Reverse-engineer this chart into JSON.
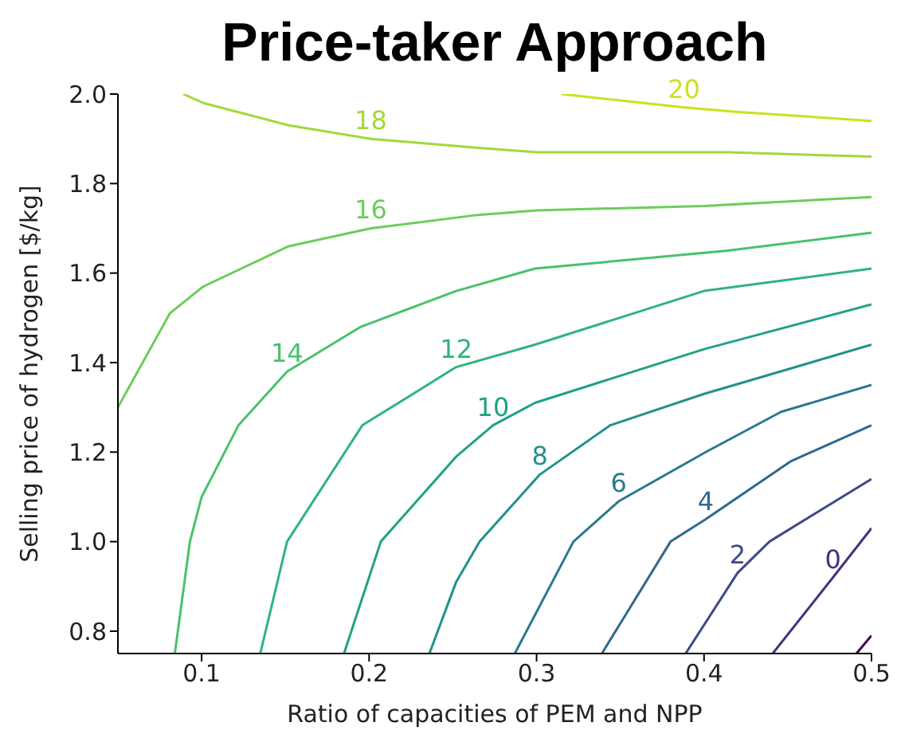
{
  "chart_data": {
    "type": "line",
    "title": "Price-taker Approach",
    "xlabel": "Ratio of capacities of PEM and NPP",
    "ylabel": "Selling price of hydrogen [$/kg]",
    "xlim": [
      0.05,
      0.5
    ],
    "xticks": [
      0.1,
      0.2,
      0.3,
      0.4,
      0.5
    ],
    "ylim": [
      0.75,
      2.0
    ],
    "yticks": [
      0.8,
      {
        "value": 1.0,
        "label": "1.0"
      },
      1.2,
      1.4,
      1.6,
      1.8,
      {
        "value": 2.0,
        "label": "2.0"
      }
    ],
    "series": [
      {
        "color": "#440154",
        "x": [
          0.491,
          0.5
        ],
        "values": [
          0.75,
          0.79
        ]
      },
      {
        "name": "0",
        "color": "#46327e",
        "x": [
          0.441,
          0.477,
          0.5
        ],
        "values": [
          0.75,
          0.92,
          1.03
        ]
      },
      {
        "name": "2",
        "color": "#3e4989",
        "x": [
          0.389,
          0.42,
          0.439,
          0.5
        ],
        "values": [
          0.75,
          0.93,
          1.0,
          1.14
        ]
      },
      {
        "name": "4",
        "color": "#31688e",
        "x": [
          0.339,
          0.38,
          0.401,
          0.452,
          0.5
        ],
        "values": [
          0.75,
          1.0,
          1.05,
          1.18,
          1.26
        ]
      },
      {
        "name": "6",
        "color": "#2a788e",
        "x": [
          0.287,
          0.322,
          0.349,
          0.401,
          0.446,
          0.5
        ],
        "values": [
          0.75,
          1.0,
          1.09,
          1.2,
          1.29,
          1.35
        ]
      },
      {
        "name": "8",
        "color": "#21918c",
        "x": [
          0.236,
          0.252,
          0.266,
          0.302,
          0.344,
          0.4,
          0.5
        ],
        "values": [
          0.75,
          0.91,
          1.0,
          1.15,
          1.26,
          1.33,
          1.44
        ]
      },
      {
        "name": "10",
        "color": "#1fa187",
        "x": [
          0.185,
          0.207,
          0.252,
          0.274,
          0.299,
          0.4,
          0.5
        ],
        "values": [
          0.75,
          1.0,
          1.19,
          1.26,
          1.31,
          1.43,
          1.53
        ]
      },
      {
        "name": "12",
        "color": "#2fb47c",
        "x": [
          0.135,
          0.151,
          0.196,
          0.252,
          0.299,
          0.4,
          0.5
        ],
        "values": [
          0.75,
          1.0,
          1.26,
          1.39,
          1.44,
          1.56,
          1.61
        ]
      },
      {
        "name": "14",
        "color": "#4ac16d",
        "x": [
          0.084,
          0.093,
          0.1,
          0.122,
          0.151,
          0.195,
          0.252,
          0.299,
          0.414,
          0.5
        ],
        "values": [
          0.75,
          1.0,
          1.1,
          1.26,
          1.38,
          1.48,
          1.56,
          1.61,
          1.65,
          1.69
        ]
      },
      {
        "name": "16",
        "color": "#6ccd5a",
        "x": [
          0.05,
          0.081,
          0.101,
          0.152,
          0.201,
          0.265,
          0.3,
          0.4,
          0.5
        ],
        "values": [
          1.3,
          1.51,
          1.57,
          1.66,
          1.7,
          1.73,
          1.74,
          1.75,
          1.77
        ]
      },
      {
        "name": "18",
        "color": "#a0da39",
        "x": [
          0.089,
          0.101,
          0.152,
          0.201,
          0.265,
          0.3,
          0.414,
          0.5
        ],
        "values": [
          2.0,
          1.98,
          1.93,
          1.9,
          1.88,
          1.87,
          1.87,
          1.86
        ]
      },
      {
        "name": "20",
        "color": "#cde11d",
        "x": [
          0.315,
          0.388,
          0.42,
          0.5
        ],
        "values": [
          2.0,
          1.97,
          1.96,
          1.94
        ]
      }
    ]
  }
}
